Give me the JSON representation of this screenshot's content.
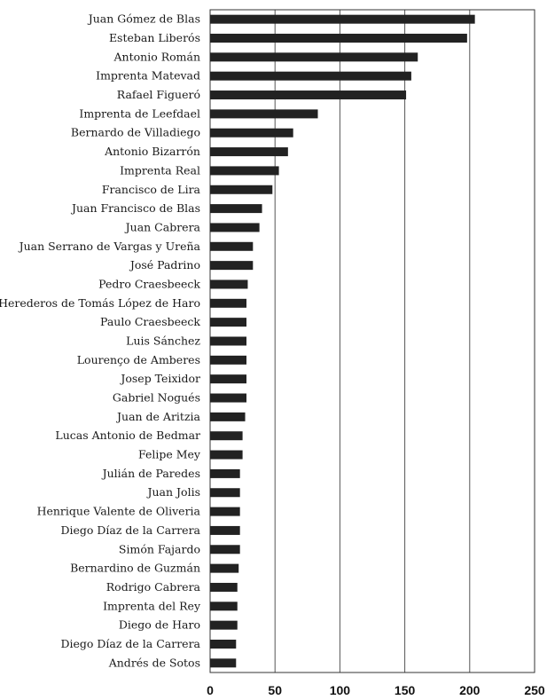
{
  "chart_data": {
    "type": "bar",
    "orientation": "horizontal",
    "categories": [
      "Juan Gómez de Blas",
      "Esteban Liberós",
      "Antonio Román",
      "Imprenta Matevad",
      "Rafael Figueró",
      "Imprenta de Leefdael",
      "Bernardo de Villadiego",
      "Antonio Bizarrón",
      "Imprenta Real",
      "Francisco de Lira",
      "Juan Francisco de Blas",
      "Juan Cabrera",
      "Juan Serrano de Vargas y Ureña",
      "José Padrino",
      "Pedro Craesbeeck",
      "Herederos de Tomás López de Haro",
      "Paulo Craesbeeck",
      "Luis Sánchez",
      "Lourenço de Amberes",
      "Josep Teixidor",
      "Gabriel Nogués",
      "Juan de Aritzia",
      "Lucas Antonio de Bedmar",
      "Felipe Mey",
      "Julián de Paredes",
      "Juan Jolis",
      "Henrique Valente de Oliveria",
      "Diego Díaz de la Carrera",
      "Simón Fajardo",
      "Bernardino de Guzmán",
      "Rodrigo Cabrera",
      "Imprenta del Rey",
      "Diego de Haro",
      "Diego Díaz de la Carrera",
      "Andrés de Sotos"
    ],
    "values": [
      204,
      198,
      160,
      155,
      151,
      83,
      64,
      60,
      53,
      48,
      40,
      38,
      33,
      33,
      29,
      28,
      28,
      28,
      28,
      28,
      28,
      27,
      25,
      25,
      23,
      23,
      23,
      23,
      23,
      22,
      21,
      21,
      21,
      20,
      20
    ],
    "xlim": [
      0,
      250
    ],
    "xticks": [
      0,
      50,
      100,
      150,
      200,
      250
    ],
    "title": "",
    "xlabel": "",
    "ylabel": "",
    "grid": "vertical",
    "legend": "none",
    "bar_color": "#222222"
  }
}
